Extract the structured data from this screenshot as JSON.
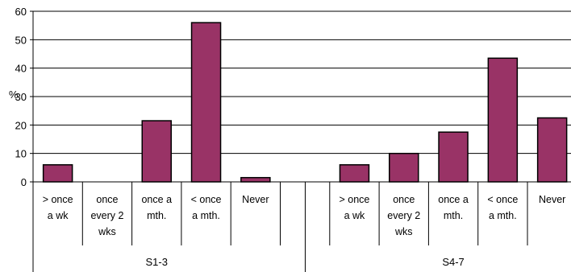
{
  "chart_data": {
    "type": "bar",
    "title": "",
    "ylabel": "%",
    "ylim": [
      0,
      60
    ],
    "yticks": [
      0,
      10,
      20,
      30,
      40,
      50,
      60
    ],
    "grid": true,
    "bar_color": "#993366",
    "groups": [
      {
        "name": "S1-3",
        "categories": [
          [
            "> once",
            "a wk"
          ],
          [
            "once",
            "every 2",
            "wks"
          ],
          [
            "once a",
            "mth."
          ],
          [
            "< once",
            "a mth."
          ],
          [
            "Never"
          ]
        ],
        "values": [
          6,
          0,
          21.5,
          56,
          1.5
        ]
      },
      {
        "name": "S4-7",
        "categories": [
          [
            "> once",
            "a wk"
          ],
          [
            "once",
            "every 2",
            "wks"
          ],
          [
            "once a",
            "mth."
          ],
          [
            "< once",
            "a mth."
          ],
          [
            "Never"
          ]
        ],
        "values": [
          6,
          10,
          17.5,
          43.5,
          22.5
        ]
      }
    ]
  }
}
